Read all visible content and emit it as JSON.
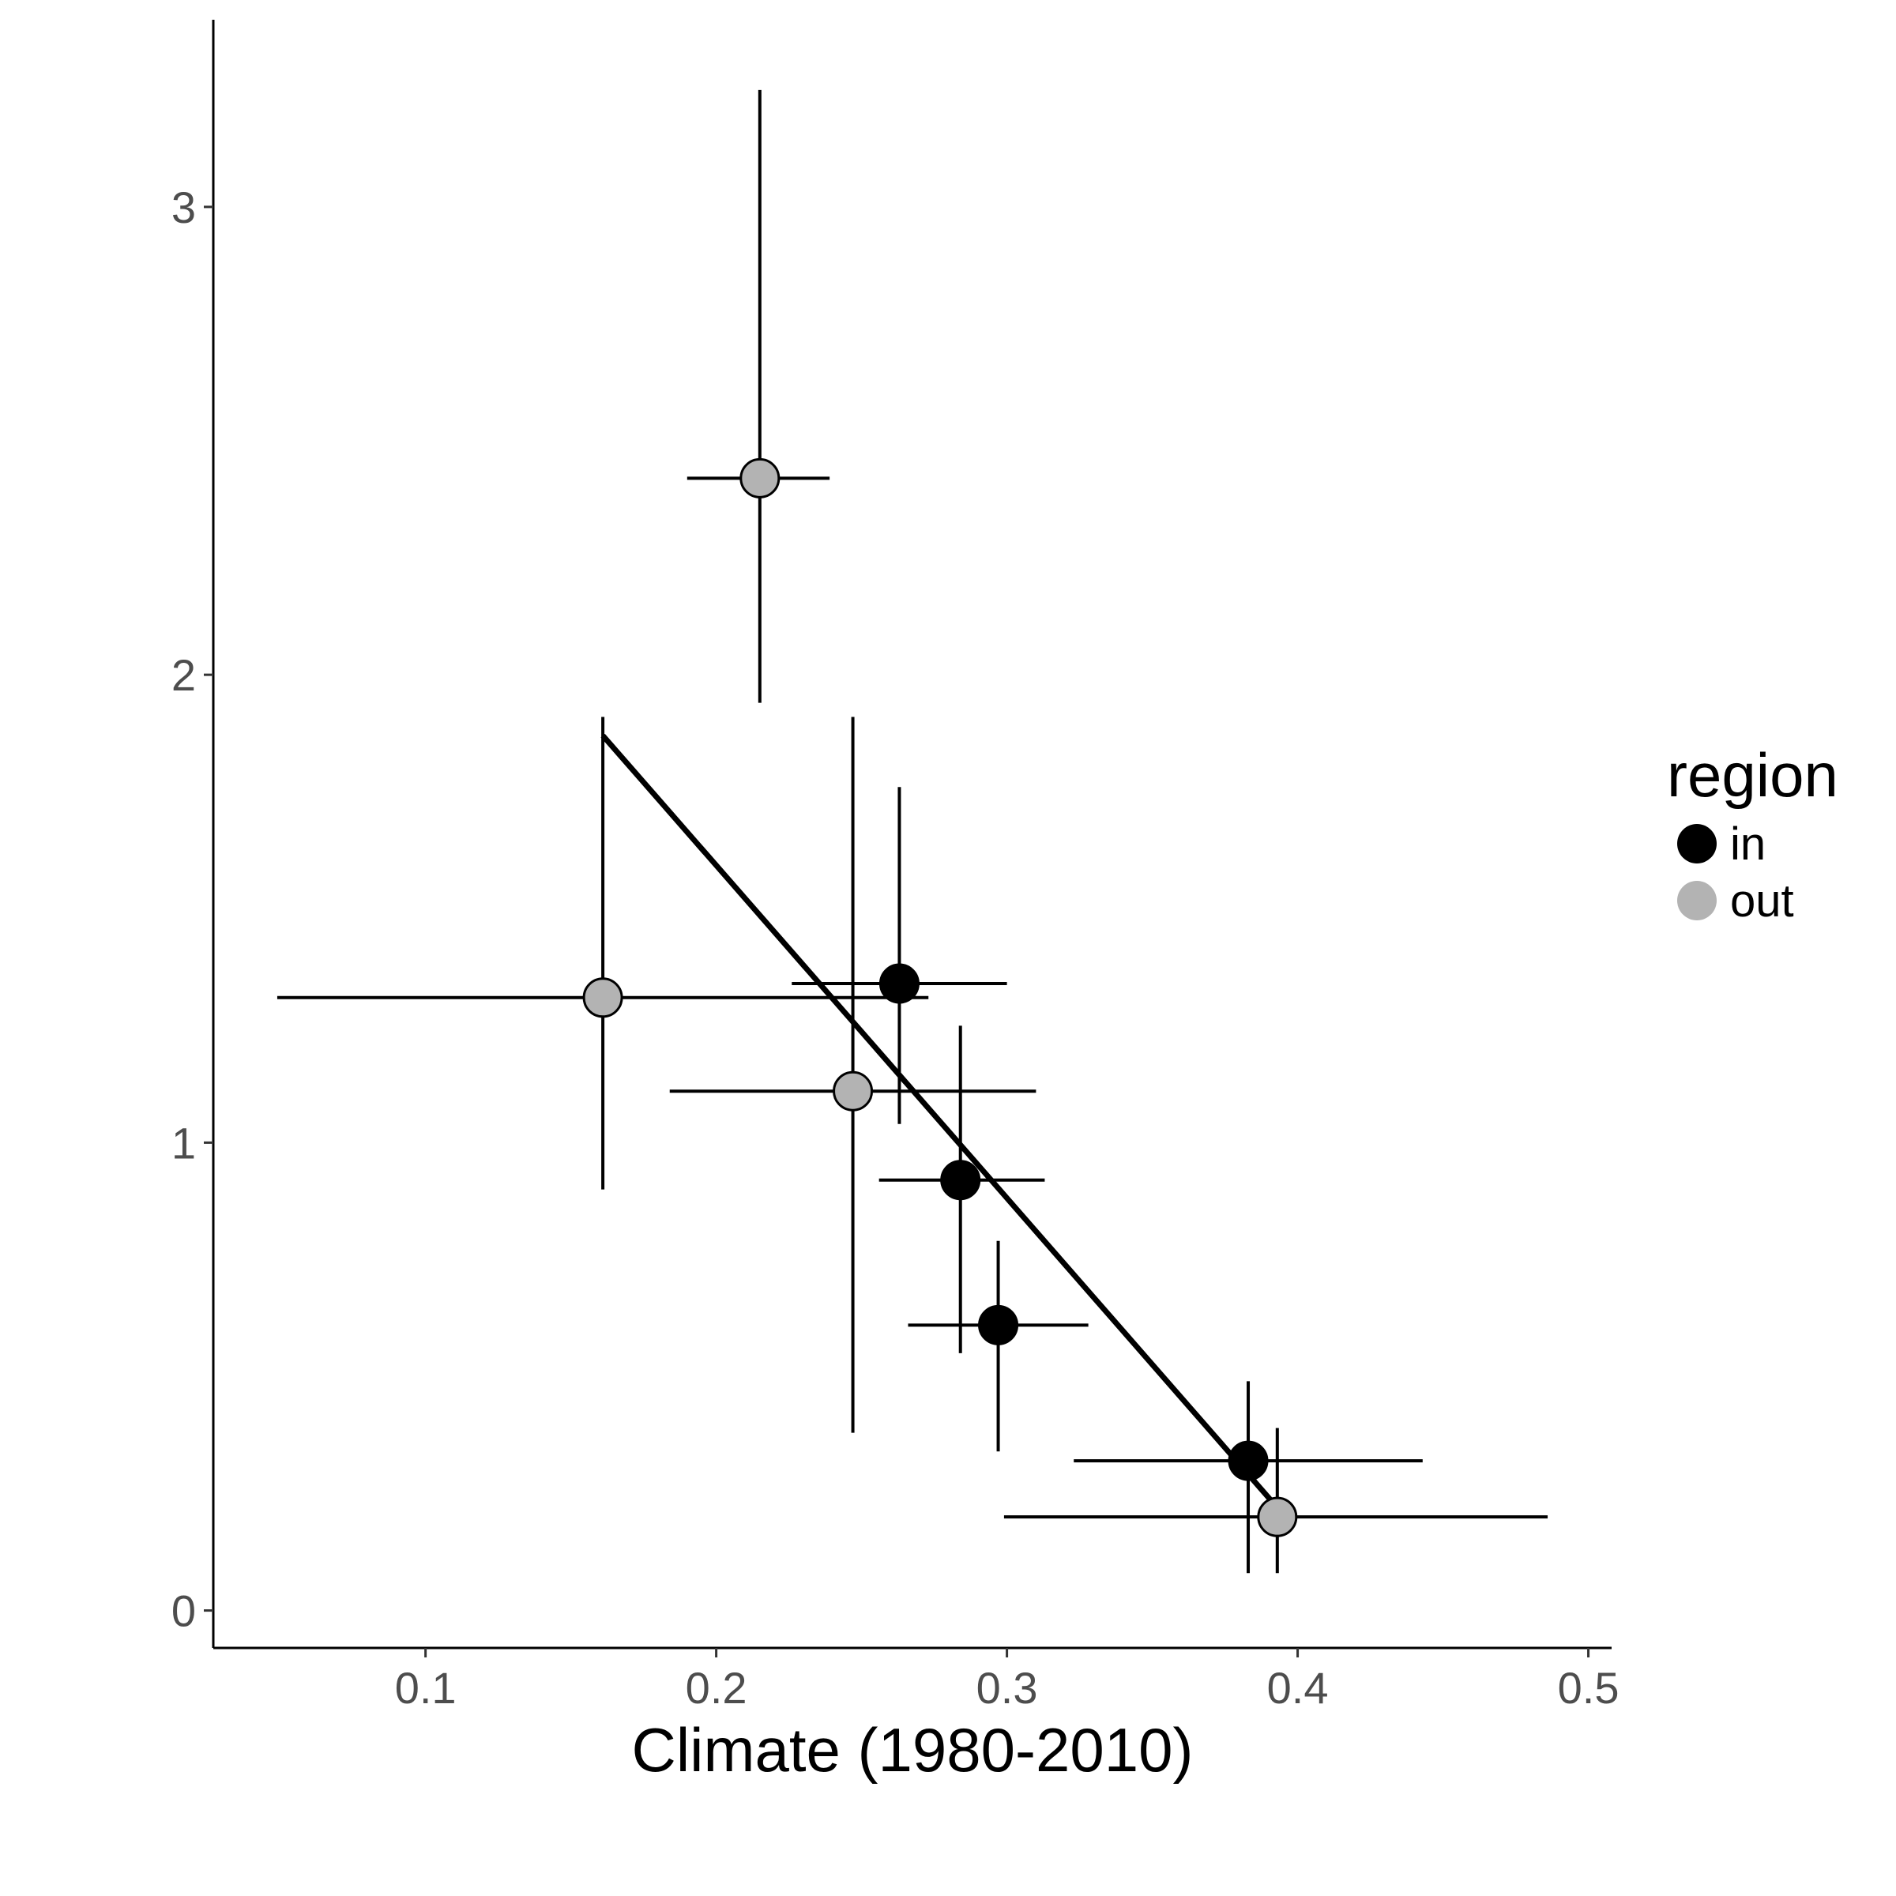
{
  "chart_data": {
    "type": "scatter",
    "title": "",
    "xlabel": "Climate (1980-2010)",
    "ylabel": "",
    "xlim": [
      0.027,
      0.508
    ],
    "ylim": [
      -0.08,
      3.4
    ],
    "x_ticks": [
      "0.1",
      "0.2",
      "0.3",
      "0.4",
      "0.5"
    ],
    "y_ticks": [
      "0",
      "1",
      "2",
      "3"
    ],
    "grid": false,
    "legend": {
      "title": "region",
      "position": "right",
      "entries": [
        {
          "label": "in",
          "color": "#000000"
        },
        {
          "label": "out",
          "color": "#b3b3b3"
        }
      ]
    },
    "series": [
      {
        "name": "in",
        "color": "#000000",
        "points": [
          {
            "x": 0.263,
            "y": 1.34,
            "xmin": 0.226,
            "xmax": 0.3,
            "ymin": 1.04,
            "ymax": 1.76
          },
          {
            "x": 0.284,
            "y": 0.92,
            "xmin": 0.256,
            "xmax": 0.313,
            "ymin": 0.55,
            "ymax": 1.25
          },
          {
            "x": 0.297,
            "y": 0.61,
            "xmin": 0.266,
            "xmax": 0.328,
            "ymin": 0.34,
            "ymax": 0.79
          },
          {
            "x": 0.383,
            "y": 0.32,
            "xmin": 0.323,
            "xmax": 0.443,
            "ymin": 0.08,
            "ymax": 0.49
          }
        ]
      },
      {
        "name": "out",
        "color": "#b3b3b3",
        "points": [
          {
            "x": 0.215,
            "y": 2.42,
            "xmin": 0.19,
            "xmax": 0.239,
            "ymin": 1.94,
            "ymax": 3.25
          },
          {
            "x": 0.161,
            "y": 1.31,
            "xmin": 0.049,
            "xmax": 0.273,
            "ymin": 0.9,
            "ymax": 1.91
          },
          {
            "x": 0.247,
            "y": 1.11,
            "xmin": 0.184,
            "xmax": 0.31,
            "ymin": 0.38,
            "ymax": 1.91
          },
          {
            "x": 0.393,
            "y": 0.2,
            "xmin": 0.299,
            "xmax": 0.486,
            "ymin": 0.08,
            "ymax": 0.39
          }
        ]
      }
    ],
    "fit_line": {
      "x": [
        0.161,
        0.393
      ],
      "y": [
        1.87,
        0.22
      ],
      "color": "#000000"
    }
  }
}
